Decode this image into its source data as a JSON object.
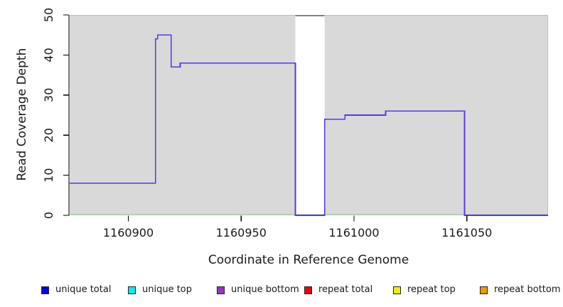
{
  "chart_data": {
    "type": "line",
    "subtype": "step-coverage",
    "title": "",
    "xlabel": "Coordinate in Reference Genome",
    "ylabel": "Read Coverage Depth",
    "xlim": [
      1160874,
      1161086
    ],
    "ylim": [
      0,
      50
    ],
    "x_ticks": [
      1160900,
      1160950,
      1161000,
      1161050
    ],
    "y_ticks": [
      0,
      10,
      20,
      30,
      40,
      50
    ],
    "grid": false,
    "legend_position": "bottom",
    "panel_bg": "#d9d9d9",
    "panel_border_color": "#bdbdbd",
    "gap_region": {
      "start": 1160974,
      "end": 1160987,
      "fill": "#ffffff",
      "cap_value": 50,
      "cap_color": "#828282"
    },
    "baseline": {
      "name": "zero baseline",
      "value": 0,
      "color": "#8cc88c"
    },
    "coverage_series": {
      "name": "unique bottom coverage",
      "color": "#5c35e6",
      "segments": [
        {
          "from": 1160874,
          "to": 1160912,
          "depth": 8
        },
        {
          "from": 1160912,
          "to": 1160913,
          "depth": 44
        },
        {
          "from": 1160913,
          "to": 1160919,
          "depth": 45
        },
        {
          "from": 1160919,
          "to": 1160923,
          "depth": 37
        },
        {
          "from": 1160923,
          "to": 1160974,
          "depth": 38
        },
        {
          "from": 1160974,
          "to": 1160987,
          "depth": 0
        },
        {
          "from": 1160987,
          "to": 1160996,
          "depth": 24
        },
        {
          "from": 1160996,
          "to": 1161014,
          "depth": 25
        },
        {
          "from": 1161014,
          "to": 1161049,
          "depth": 26
        },
        {
          "from": 1161049,
          "to": 1161086,
          "depth": 0
        }
      ]
    },
    "legend": [
      {
        "label": "unique total",
        "color": "#0000ee"
      },
      {
        "label": "unique top",
        "color": "#00eeee"
      },
      {
        "label": "unique bottom",
        "color": "#9932cc"
      },
      {
        "label": "repeat total",
        "color": "#ee0000"
      },
      {
        "label": "repeat top",
        "color": "#eeee00"
      },
      {
        "label": "repeat bottom",
        "color": "#ee9a00"
      }
    ]
  }
}
